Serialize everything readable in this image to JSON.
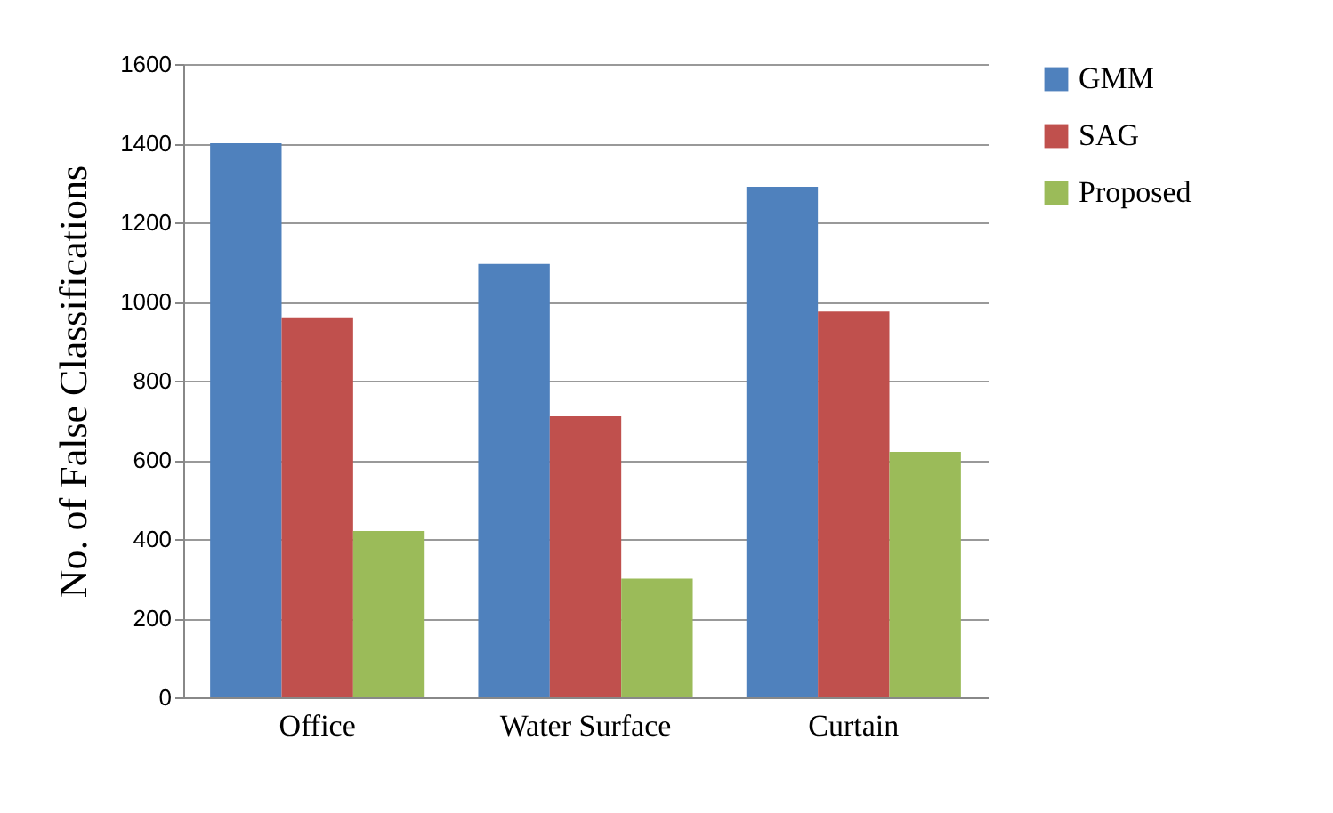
{
  "chart_data": {
    "type": "bar",
    "ylabel": "No. of  False  Classifications",
    "categories": [
      "Office",
      "Water Surface",
      "Curtain"
    ],
    "series": [
      {
        "name": "GMM",
        "color": "#4f81bd",
        "values": [
          1400,
          1095,
          1290
        ]
      },
      {
        "name": "SAG",
        "color": "#c0504d",
        "values": [
          960,
          710,
          975
        ]
      },
      {
        "name": "Proposed",
        "color": "#9bbb59",
        "values": [
          420,
          300,
          620
        ]
      }
    ],
    "ylim": [
      0,
      1600
    ],
    "yticks": [
      0,
      200,
      400,
      600,
      800,
      1000,
      1200,
      1400,
      1600
    ],
    "grid": "y",
    "legend": "right"
  }
}
